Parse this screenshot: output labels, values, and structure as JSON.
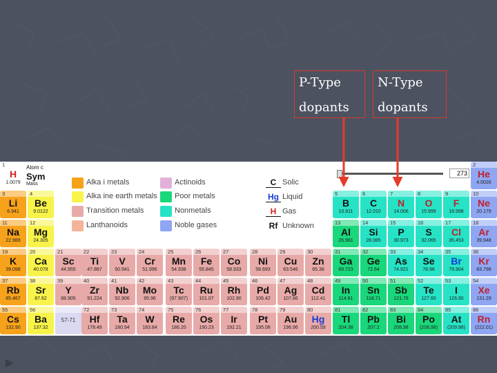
{
  "labels": {
    "p_type": {
      "line1": "P-Type",
      "line2": "dopants"
    },
    "n_type": {
      "line1": "N-Type",
      "line2": "dopants"
    }
  },
  "colors": {
    "background": "#4d5260",
    "arrow": "#e63a2a",
    "alkali": "#f7a21b",
    "alkaline_earth": "#f8f34a",
    "transition": "#e7aaa8",
    "lanthanoid": "#f4b49a",
    "actinoid": "#e2b0d8",
    "poor_metal": "#19d77b",
    "nonmetal": "#26e3c6",
    "noble": "#8fa6f3",
    "hydrogen": "#ffffff"
  },
  "key": {
    "number": "1",
    "atomic_label": "Atom c",
    "symbol": "Sym",
    "mass": "Mass"
  },
  "legend": [
    {
      "label": "Alka i metals",
      "color": "#f7a21b"
    },
    {
      "label": "Alka ine earth metals",
      "color": "#f8f34a"
    },
    {
      "label": "Transition metals",
      "color": "#e7aaa8"
    },
    {
      "label": "Lanthanoids",
      "color": "#f4b49a"
    },
    {
      "label": "Actinoids",
      "color": "#e2b0d8"
    },
    {
      "label": "Poor metals",
      "color": "#19d77b"
    },
    {
      "label": "Nonmetals",
      "color": "#26e3c6"
    },
    {
      "label": "Noble gases",
      "color": "#8fa6f3"
    }
  ],
  "states": [
    {
      "symbol": "C",
      "label": "Solic",
      "color": "#111111"
    },
    {
      "symbol": "Hg",
      "label": "Liquid",
      "color": "#1a3ad6"
    },
    {
      "symbol": "H",
      "label": "Gas",
      "color": "#d62020"
    },
    {
      "symbol": "Rf",
      "label": "Unknown",
      "color": "#111111"
    }
  ],
  "temperature": {
    "value": "273"
  },
  "elements": [
    {
      "n": "1",
      "s": "H",
      "m": "1.0079",
      "c": "hydrogen"
    },
    {
      "n": "2",
      "s": "He",
      "m": "4.0026",
      "c": "noble"
    },
    {
      "n": "3",
      "s": "Li",
      "m": "6.941",
      "c": "alkali"
    },
    {
      "n": "4",
      "s": "Be",
      "m": "9.0122",
      "c": "alkaline_earth"
    },
    {
      "n": "5",
      "s": "B",
      "m": "10.811",
      "c": "nonmetal"
    },
    {
      "n": "6",
      "s": "C",
      "m": "12.010",
      "c": "nonmetal"
    },
    {
      "n": "7",
      "s": "N",
      "m": "14.006",
      "c": "nonmetal"
    },
    {
      "n": "8",
      "s": "O",
      "m": "15.999",
      "c": "nonmetal"
    },
    {
      "n": "9",
      "s": "F",
      "m": "18.998",
      "c": "nonmetal"
    },
    {
      "n": "10",
      "s": "Ne",
      "m": "20.179",
      "c": "noble"
    },
    {
      "n": "11",
      "s": "Na",
      "m": "22.989",
      "c": "alkali"
    },
    {
      "n": "12",
      "s": "Mg",
      "m": "24.305",
      "c": "alkaline_earth"
    },
    {
      "n": "13",
      "s": "Al",
      "m": "26.981",
      "c": "poor_metal"
    },
    {
      "n": "14",
      "s": "Si",
      "m": "28.085",
      "c": "nonmetal"
    },
    {
      "n": "15",
      "s": "P",
      "m": "30.973",
      "c": "nonmetal"
    },
    {
      "n": "16",
      "s": "S",
      "m": "32.065",
      "c": "nonmetal"
    },
    {
      "n": "17",
      "s": "Cl",
      "m": "35.453",
      "c": "nonmetal"
    },
    {
      "n": "18",
      "s": "Ar",
      "m": "39.948",
      "c": "noble"
    },
    {
      "n": "19",
      "s": "K",
      "m": "39.098",
      "c": "alkali"
    },
    {
      "n": "20",
      "s": "Ca",
      "m": "40.078",
      "c": "alkaline_earth"
    },
    {
      "n": "21",
      "s": "Sc",
      "m": "44.955",
      "c": "transition"
    },
    {
      "n": "22",
      "s": "Ti",
      "m": "47.867",
      "c": "transition"
    },
    {
      "n": "23",
      "s": "V",
      "m": "50.941",
      "c": "transition"
    },
    {
      "n": "24",
      "s": "Cr",
      "m": "51.996",
      "c": "transition"
    },
    {
      "n": "25",
      "s": "Mn",
      "m": "54.938",
      "c": "transition"
    },
    {
      "n": "26",
      "s": "Fe",
      "m": "55.845",
      "c": "transition"
    },
    {
      "n": "27",
      "s": "Co",
      "m": "58.933",
      "c": "transition"
    },
    {
      "n": "28",
      "s": "Ni",
      "m": "58.693",
      "c": "transition"
    },
    {
      "n": "29",
      "s": "Cu",
      "m": "63.546",
      "c": "transition"
    },
    {
      "n": "30",
      "s": "Zn",
      "m": "65.38",
      "c": "transition"
    },
    {
      "n": "31",
      "s": "Ga",
      "m": "69.723",
      "c": "poor_metal"
    },
    {
      "n": "32",
      "s": "Ge",
      "m": "72.64",
      "c": "poor_metal"
    },
    {
      "n": "33",
      "s": "As",
      "m": "74.921",
      "c": "nonmetal"
    },
    {
      "n": "34",
      "s": "Se",
      "m": "78.96",
      "c": "nonmetal"
    },
    {
      "n": "35",
      "s": "Br",
      "m": "79.904",
      "c": "nonmetal"
    },
    {
      "n": "36",
      "s": "Kr",
      "m": "83.798",
      "c": "noble"
    },
    {
      "n": "37",
      "s": "Rb",
      "m": "85.467",
      "c": "alkali"
    },
    {
      "n": "38",
      "s": "Sr",
      "m": "87.62",
      "c": "alkaline_earth"
    },
    {
      "n": "39",
      "s": "Y",
      "m": "88.905",
      "c": "transition"
    },
    {
      "n": "40",
      "s": "Zr",
      "m": "91.224",
      "c": "transition"
    },
    {
      "n": "41",
      "s": "Nb",
      "m": "92.906",
      "c": "transition"
    },
    {
      "n": "42",
      "s": "Mo",
      "m": "95.96",
      "c": "transition"
    },
    {
      "n": "43",
      "s": "Tc",
      "m": "(97.907)",
      "c": "transition"
    },
    {
      "n": "44",
      "s": "Ru",
      "m": "101.07",
      "c": "transition"
    },
    {
      "n": "45",
      "s": "Rh",
      "m": "102.90",
      "c": "transition"
    },
    {
      "n": "46",
      "s": "Pd",
      "m": "106.42",
      "c": "transition"
    },
    {
      "n": "47",
      "s": "Ag",
      "m": "107.86",
      "c": "transition"
    },
    {
      "n": "48",
      "s": "Cd",
      "m": "112.41",
      "c": "transition"
    },
    {
      "n": "49",
      "s": "In",
      "m": "114.81",
      "c": "poor_metal"
    },
    {
      "n": "50",
      "s": "Sn",
      "m": "118.71",
      "c": "poor_metal"
    },
    {
      "n": "51",
      "s": "Sb",
      "m": "121.76",
      "c": "poor_metal"
    },
    {
      "n": "52",
      "s": "Te",
      "m": "127.60",
      "c": "nonmetal"
    },
    {
      "n": "53",
      "s": "I",
      "m": "126.90",
      "c": "nonmetal"
    },
    {
      "n": "54",
      "s": "Xe",
      "m": "131.29",
      "c": "noble"
    },
    {
      "n": "55",
      "s": "Cs",
      "m": "132.90",
      "c": "alkali"
    },
    {
      "n": "56",
      "s": "Ba",
      "m": "137.32",
      "c": "alkaline_earth"
    },
    {
      "n": "57-71",
      "s": "",
      "m": "",
      "c": "lanthanoid_ph"
    },
    {
      "n": "72",
      "s": "Hf",
      "m": "178.49",
      "c": "transition"
    },
    {
      "n": "73",
      "s": "Ta",
      "m": "180.94",
      "c": "transition"
    },
    {
      "n": "74",
      "s": "W",
      "m": "183.84",
      "c": "transition"
    },
    {
      "n": "75",
      "s": "Re",
      "m": "186.20",
      "c": "transition"
    },
    {
      "n": "76",
      "s": "Os",
      "m": "190.23",
      "c": "transition"
    },
    {
      "n": "77",
      "s": "Ir",
      "m": "192.21",
      "c": "transition"
    },
    {
      "n": "78",
      "s": "Pt",
      "m": "195.08",
      "c": "transition"
    },
    {
      "n": "79",
      "s": "Au",
      "m": "196.96",
      "c": "transition"
    },
    {
      "n": "80",
      "s": "Hg",
      "m": "200.59",
      "c": "transition"
    },
    {
      "n": "81",
      "s": "Tl",
      "m": "204.38",
      "c": "poor_metal"
    },
    {
      "n": "82",
      "s": "Pb",
      "m": "207.2",
      "c": "poor_metal"
    },
    {
      "n": "83",
      "s": "Bi",
      "m": "208.98",
      "c": "poor_metal"
    },
    {
      "n": "84",
      "s": "Po",
      "m": "(208.98)",
      "c": "poor_metal"
    },
    {
      "n": "85",
      "s": "At",
      "m": "(209.98)",
      "c": "nonmetal"
    },
    {
      "n": "86",
      "s": "Rn",
      "m": "(222.01)",
      "c": "noble"
    }
  ]
}
